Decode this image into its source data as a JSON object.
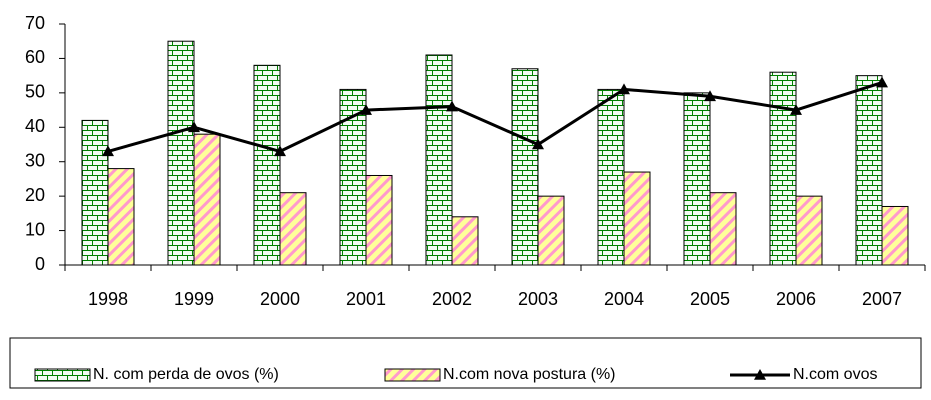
{
  "chart_data": {
    "type": "bar",
    "categories": [
      "1998",
      "1999",
      "2000",
      "2001",
      "2002",
      "2003",
      "2004",
      "2005",
      "2006",
      "2007"
    ],
    "series": [
      {
        "name": "N. com perda de ovos (%)",
        "color": "#008000",
        "values": [
          42,
          65,
          58,
          51,
          61,
          57,
          51,
          50,
          56,
          55
        ]
      },
      {
        "name": "N.com nova postura (%)",
        "color": "#ff99cc",
        "values": [
          28,
          38,
          21,
          26,
          14,
          20,
          27,
          21,
          20,
          17
        ]
      },
      {
        "name": "N.com ovos",
        "color": "#000000",
        "type": "line",
        "values": [
          33,
          40,
          33,
          45,
          46,
          35,
          51,
          49,
          45,
          53
        ]
      }
    ],
    "ylim": [
      0,
      70
    ],
    "yticks": [
      0,
      10,
      20,
      30,
      40,
      50,
      60,
      70
    ],
    "legend": "bottom"
  }
}
